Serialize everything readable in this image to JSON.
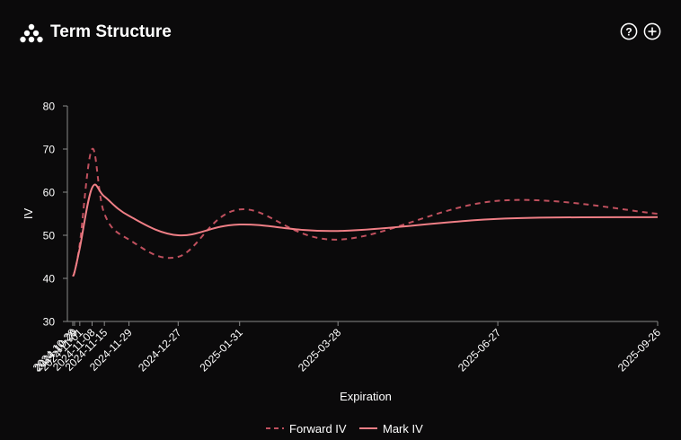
{
  "header": {
    "title": "Term Structure",
    "help_icon": "question-circle-icon",
    "add_icon": "plus-circle-icon",
    "logo_icon": "dots-pyramid-logo-icon"
  },
  "chart_data": {
    "type": "line",
    "xlabel": "Expiration",
    "ylabel": "IV",
    "ylim": [
      30,
      80
    ],
    "yticks": [
      30,
      40,
      50,
      60,
      70,
      80
    ],
    "x_tick_labels": [
      "2024-10-28",
      "2024-10-29",
      "2024-11-01",
      "2024-11-08",
      "2024-11-15",
      "2024-11-29",
      "2024-12-27",
      "2025-01-31",
      "2025-03-28",
      "2025-06-27",
      "2025-09-26"
    ],
    "x_axis_type": "date",
    "x": [
      "2024-10-28",
      "2024-10-29",
      "2024-11-01",
      "2024-11-08",
      "2024-11-15",
      "2024-11-29",
      "2024-12-27",
      "2025-01-31",
      "2025-03-28",
      "2025-06-27",
      "2025-09-26"
    ],
    "grid": false,
    "legend_position": "bottom-center",
    "series": [
      {
        "name": "Forward IV",
        "style": "dashed",
        "color": "#c0505e",
        "values": [
          40.5,
          41.5,
          48,
          70,
          55,
          49,
          45,
          56,
          49,
          58,
          55
        ]
      },
      {
        "name": "Mark IV",
        "style": "solid",
        "color": "#f07f86",
        "values": [
          40.5,
          41.5,
          47,
          61,
          59,
          54.5,
          50,
          52.5,
          51,
          53.8,
          54.2
        ]
      }
    ]
  },
  "colors": {
    "background": "#0b0a0b",
    "axis": "#8a8a8a",
    "text": "#ffffff"
  }
}
